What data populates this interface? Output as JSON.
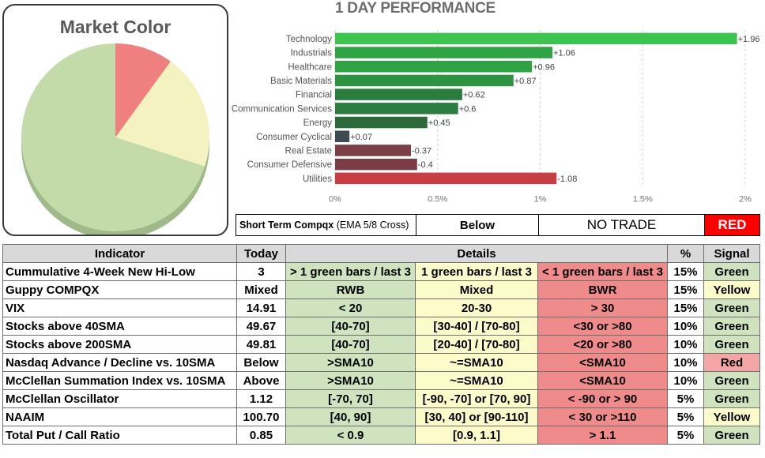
{
  "market_color": {
    "title": "Market Color",
    "slices": [
      {
        "label": "Green",
        "value": 70,
        "color": "#c2dba9"
      },
      {
        "label": "Yellow",
        "value": 20,
        "color": "#f5f2c2"
      },
      {
        "label": "Red",
        "value": 10,
        "color": "#f07f7f"
      }
    ]
  },
  "chart_data": {
    "type": "bar",
    "orientation": "horizontal",
    "title": "1 DAY PERFORMANCE",
    "categories": [
      "Technology",
      "Industrials",
      "Healthcare",
      "Basic Materials",
      "Financial",
      "Communication Services",
      "Energy",
      "Consumer Cyclical",
      "Real Estate",
      "Consumer Defensive",
      "Utilities"
    ],
    "values": [
      1.96,
      1.06,
      0.96,
      0.87,
      0.62,
      0.6,
      0.45,
      0.07,
      -0.37,
      -0.4,
      -1.08
    ],
    "value_labels": [
      "+1.96",
      "+1.06",
      "+0.96",
      "+0.87",
      "+0.62",
      "+0.6",
      "+0.45",
      "+0.07",
      "-0.37",
      "-0.4",
      "-1.08"
    ],
    "colors": [
      "#3cc44e",
      "#2fa343",
      "#2fa343",
      "#2d9241",
      "#2a7d3c",
      "#2a7d3c",
      "#2d6a3b",
      "#3e4a52",
      "#7b3d46",
      "#7b3d46",
      "#c83c44"
    ],
    "xlim": [
      0,
      2
    ],
    "ticks": [
      0,
      0.5,
      1,
      1.5,
      2
    ],
    "tick_labels": [
      "0%",
      "0.5%",
      "1%",
      "1.5%",
      "2%"
    ],
    "grid": true
  },
  "short_term": {
    "label_bold": "Short Term Compqx",
    "label_normal": "(EMA 5/8 Cross)",
    "position": "Below",
    "action": "NO TRADE",
    "signal": "RED"
  },
  "table": {
    "headers": [
      "Indicator",
      "Today",
      "Details",
      "%",
      "Signal"
    ],
    "rows": [
      {
        "indicator": "Cummulative 4-Week New Hi-Low",
        "today": "3",
        "d1": "> 1 green bars / last 3",
        "d2": "1 green bars / last 3",
        "d3": "< 1 green bars / last 3",
        "pct": "15%",
        "signal": "Green",
        "signal_class": "sg-green"
      },
      {
        "indicator": "Guppy COMPQX",
        "today": "Mixed",
        "d1": "RWB",
        "d2": "Mixed",
        "d3": "BWR",
        "pct": "15%",
        "signal": "Yellow",
        "signal_class": "sg-yellow"
      },
      {
        "indicator": "VIX",
        "today": "14.91",
        "d1": "< 20",
        "d2": "20-30",
        "d3": "> 30",
        "pct": "15%",
        "signal": "Green",
        "signal_class": "sg-green"
      },
      {
        "indicator": "Stocks above 40SMA",
        "today": "49.67",
        "d1": "[40-70]",
        "d2": "[30-40] / [70-80]",
        "d3": "<30 or >80",
        "pct": "10%",
        "signal": "Green",
        "signal_class": "sg-green"
      },
      {
        "indicator": "Stocks above 200SMA",
        "today": "49.81",
        "d1": "[40-70]",
        "d2": "[20-40] / [70-80]",
        "d3": "<20 or >80",
        "pct": "10%",
        "signal": "Green",
        "signal_class": "sg-green"
      },
      {
        "indicator": "Nasdaq Advance / Decline vs. 10SMA",
        "today": "Below",
        "d1": ">SMA10",
        "d2": "~=SMA10",
        "d3": "<SMA10",
        "pct": "10%",
        "signal": "Red",
        "signal_class": "sg-red"
      },
      {
        "indicator": "McClellan Summation Index vs. 10SMA",
        "today": "Above",
        "d1": ">SMA10",
        "d2": "~=SMA10",
        "d3": "<SMA10",
        "pct": "10%",
        "signal": "Green",
        "signal_class": "sg-green"
      },
      {
        "indicator": "McClellan Oscillator",
        "today": "1.12",
        "d1": "[-70,  70]",
        "d2": "[-90, -70] or [70, 90]",
        "d3": "< -90 or > 90",
        "pct": "5%",
        "signal": "Green",
        "signal_class": "sg-green"
      },
      {
        "indicator": "NAAIM",
        "today": "100.70",
        "d1": "[40, 90]",
        "d2": "[30, 40] or [90-110]",
        "d3": "< 30 or >110",
        "pct": "5%",
        "signal": "Yellow",
        "signal_class": "sg-yellow"
      },
      {
        "indicator": "Total Put / Call Ratio",
        "today": "0.85",
        "d1": "< 0.9",
        "d2": "[0.9, 1.1]",
        "d3": "> 1.1",
        "pct": "5%",
        "signal": "Green",
        "signal_class": "sg-green"
      }
    ]
  }
}
